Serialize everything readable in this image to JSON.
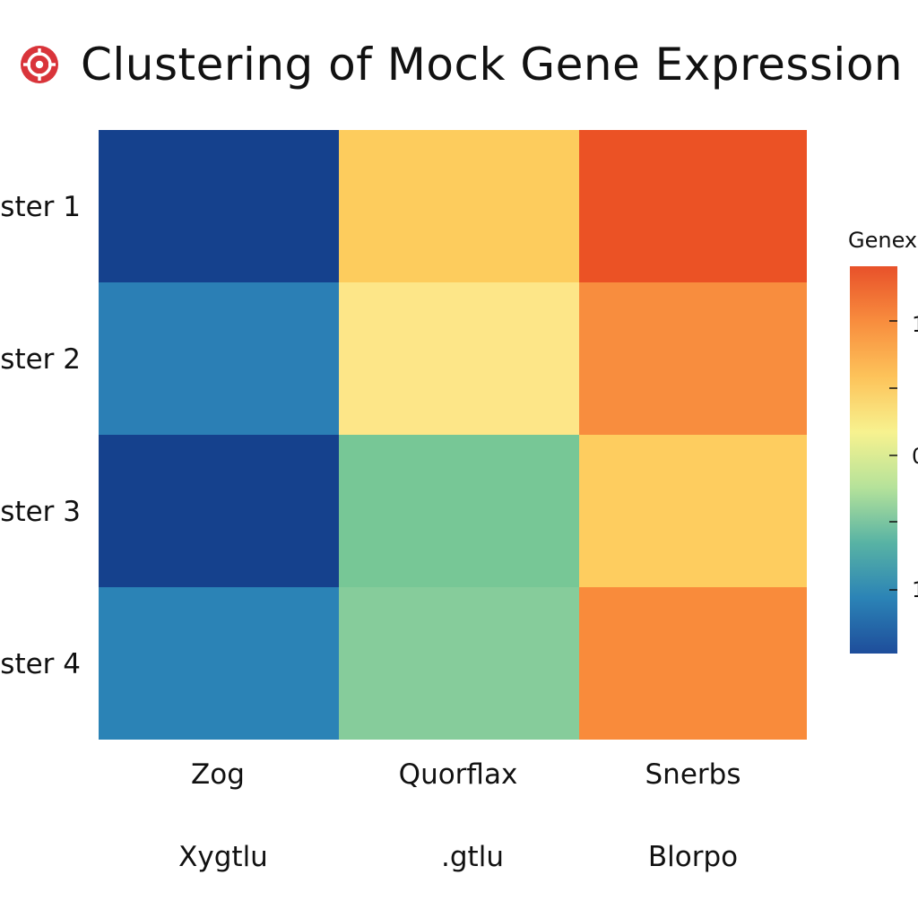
{
  "title": "Clustering of Mock Gene Expression",
  "title_icon": "target-icon",
  "colors": {
    "icon_red": "#d9343a",
    "title_text": "#111111"
  },
  "chart_data": {
    "type": "heatmap",
    "rows": [
      "ster 1",
      "ster 2",
      "ster 3",
      "ster 4"
    ],
    "columns": [
      "Zog",
      "Quorflax",
      "Snerbs"
    ],
    "secondary_columns": [
      "Xygtlu",
      ".gtlu",
      "Blorpo"
    ],
    "cells": [
      [
        "#15418d",
        "#fdcc5d",
        "#eb5225"
      ],
      [
        "#2b7fb5",
        "#fde688",
        "#f88d3e"
      ],
      [
        "#15418d",
        "#77c796",
        "#fecd5f"
      ],
      [
        "#2b83b6",
        "#86cc9b",
        "#f98b3b"
      ]
    ],
    "legend": {
      "title": "Genex",
      "colorscale": [
        "#1e4d9b",
        "#2b83b6",
        "#58b3a4",
        "#b5e29a",
        "#f7f28f",
        "#fdc35a",
        "#f88d3e",
        "#e8512a"
      ],
      "tick_labels": [
        "1",
        "0",
        "1"
      ],
      "tick_label_colors": [
        "#d9343a",
        "#111111",
        "#111111"
      ]
    }
  }
}
